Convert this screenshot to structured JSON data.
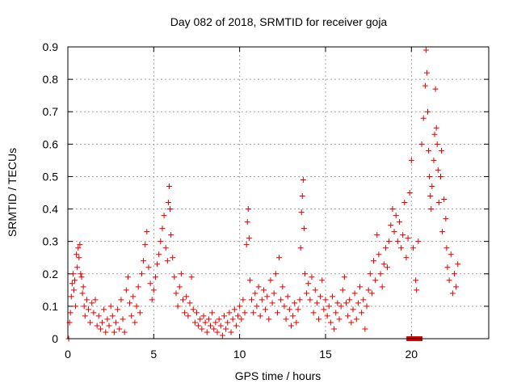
{
  "chart_data": {
    "type": "scatter",
    "title": "Day 082 of 2018, SRMTID for receiver goja",
    "xlabel": "GPS time / hours",
    "ylabel": "SRMTID / TECUs",
    "xlim": [
      0,
      24.5
    ],
    "ylim": [
      0,
      0.9
    ],
    "xticks": [
      0,
      5,
      10,
      15,
      20
    ],
    "yticks": [
      0,
      0.1,
      0.2,
      0.3,
      0.4,
      0.5,
      0.6,
      0.7,
      0.8,
      0.9
    ],
    "xtick_labels": [
      "0",
      "5",
      "10",
      "15",
      "20"
    ],
    "ytick_labels": [
      "0",
      "0.1",
      "0.2",
      "0.3",
      "0.4",
      "0.5",
      "0.6",
      "0.7",
      "0.8",
      "0.9"
    ],
    "grid": true,
    "marker": "plus",
    "color": "#e00000",
    "series": [
      {
        "name": "SRMTID",
        "points": [
          [
            0.05,
            0.0
          ],
          [
            0.1,
            0.05
          ],
          [
            0.15,
            0.08
          ],
          [
            0.2,
            0.13
          ],
          [
            0.25,
            0.17
          ],
          [
            0.3,
            0.2
          ],
          [
            0.35,
            0.15
          ],
          [
            0.4,
            0.18
          ],
          [
            0.45,
            0.1
          ],
          [
            0.5,
            0.26
          ],
          [
            0.55,
            0.22
          ],
          [
            0.6,
            0.28
          ],
          [
            0.65,
            0.25
          ],
          [
            0.7,
            0.29
          ],
          [
            0.75,
            0.2
          ],
          [
            0.8,
            0.19
          ],
          [
            0.85,
            0.14
          ],
          [
            0.9,
            0.16
          ],
          [
            0.95,
            0.1
          ],
          [
            1.0,
            0.07
          ],
          [
            1.1,
            0.12
          ],
          [
            1.2,
            0.09
          ],
          [
            1.3,
            0.05
          ],
          [
            1.4,
            0.11
          ],
          [
            1.5,
            0.08
          ],
          [
            1.6,
            0.12
          ],
          [
            1.7,
            0.04
          ],
          [
            1.8,
            0.07
          ],
          [
            1.9,
            0.03
          ],
          [
            2.0,
            0.05
          ],
          [
            2.1,
            0.09
          ],
          [
            2.2,
            0.02
          ],
          [
            2.3,
            0.06
          ],
          [
            2.4,
            0.04
          ],
          [
            2.5,
            0.1
          ],
          [
            2.6,
            0.07
          ],
          [
            2.7,
            0.02
          ],
          [
            2.8,
            0.05
          ],
          [
            2.9,
            0.09
          ],
          [
            3.0,
            0.03
          ],
          [
            3.1,
            0.12
          ],
          [
            3.2,
            0.06
          ],
          [
            3.3,
            0.02
          ],
          [
            3.4,
            0.15
          ],
          [
            3.5,
            0.19
          ],
          [
            3.6,
            0.11
          ],
          [
            3.7,
            0.07
          ],
          [
            3.8,
            0.13
          ],
          [
            3.9,
            0.05
          ],
          [
            4.0,
            0.1
          ],
          [
            4.1,
            0.16
          ],
          [
            4.2,
            0.08
          ],
          [
            4.3,
            0.2
          ],
          [
            4.4,
            0.24
          ],
          [
            4.5,
            0.29
          ],
          [
            4.6,
            0.33
          ],
          [
            4.7,
            0.22
          ],
          [
            4.8,
            0.17
          ],
          [
            4.9,
            0.12
          ],
          [
            5.0,
            0.15
          ],
          [
            5.1,
            0.19
          ],
          [
            5.2,
            0.23
          ],
          [
            5.3,
            0.26
          ],
          [
            5.4,
            0.3
          ],
          [
            5.5,
            0.34
          ],
          [
            5.6,
            0.38
          ],
          [
            5.7,
            0.28
          ],
          [
            5.8,
            0.24
          ],
          [
            5.85,
            0.42
          ],
          [
            5.9,
            0.47
          ],
          [
            5.95,
            0.4
          ],
          [
            6.0,
            0.32
          ],
          [
            6.1,
            0.25
          ],
          [
            6.2,
            0.19
          ],
          [
            6.3,
            0.14
          ],
          [
            6.4,
            0.1
          ],
          [
            6.5,
            0.16
          ],
          [
            6.6,
            0.2
          ],
          [
            6.7,
            0.12
          ],
          [
            6.8,
            0.08
          ],
          [
            6.9,
            0.13
          ],
          [
            7.0,
            0.07
          ],
          [
            7.1,
            0.11
          ],
          [
            7.2,
            0.19
          ],
          [
            7.3,
            0.09
          ],
          [
            7.4,
            0.05
          ],
          [
            7.5,
            0.08
          ],
          [
            7.6,
            0.04
          ],
          [
            7.7,
            0.06
          ],
          [
            7.8,
            0.03
          ],
          [
            7.9,
            0.07
          ],
          [
            8.0,
            0.05
          ],
          [
            8.1,
            0.02
          ],
          [
            8.2,
            0.06
          ],
          [
            8.3,
            0.04
          ],
          [
            8.4,
            0.08
          ],
          [
            8.5,
            0.03
          ],
          [
            8.6,
            0.05
          ],
          [
            8.7,
            0.02
          ],
          [
            8.8,
            0.06
          ],
          [
            8.9,
            0.04
          ],
          [
            9.0,
            0.01
          ],
          [
            9.1,
            0.07
          ],
          [
            9.2,
            0.03
          ],
          [
            9.3,
            0.05
          ],
          [
            9.4,
            0.08
          ],
          [
            9.5,
            0.02
          ],
          [
            9.6,
            0.06
          ],
          [
            9.7,
            0.09
          ],
          [
            9.8,
            0.04
          ],
          [
            9.9,
            0.07
          ],
          [
            10.0,
            0.1
          ],
          [
            10.1,
            0.06
          ],
          [
            10.2,
            0.12
          ],
          [
            10.3,
            0.08
          ],
          [
            10.4,
            0.29
          ],
          [
            10.45,
            0.36
          ],
          [
            10.5,
            0.4
          ],
          [
            10.55,
            0.31
          ],
          [
            10.6,
            0.18
          ],
          [
            10.7,
            0.12
          ],
          [
            10.8,
            0.08
          ],
          [
            10.9,
            0.14
          ],
          [
            11.0,
            0.1
          ],
          [
            11.1,
            0.16
          ],
          [
            11.2,
            0.07
          ],
          [
            11.3,
            0.12
          ],
          [
            11.4,
            0.15
          ],
          [
            11.5,
            0.09
          ],
          [
            11.6,
            0.13
          ],
          [
            11.7,
            0.06
          ],
          [
            11.8,
            0.18
          ],
          [
            11.9,
            0.11
          ],
          [
            12.0,
            0.14
          ],
          [
            12.1,
            0.2
          ],
          [
            12.2,
            0.08
          ],
          [
            12.3,
            0.25
          ],
          [
            12.4,
            0.12
          ],
          [
            12.5,
            0.16
          ],
          [
            12.6,
            0.1
          ],
          [
            12.7,
            0.06
          ],
          [
            12.8,
            0.13
          ],
          [
            12.9,
            0.09
          ],
          [
            13.0,
            0.04
          ],
          [
            13.1,
            0.07
          ],
          [
            13.2,
            0.11
          ],
          [
            13.3,
            0.05
          ],
          [
            13.4,
            0.09
          ],
          [
            13.5,
            0.12
          ],
          [
            13.55,
            0.28
          ],
          [
            13.6,
            0.39
          ],
          [
            13.65,
            0.44
          ],
          [
            13.7,
            0.49
          ],
          [
            13.75,
            0.34
          ],
          [
            13.8,
            0.2
          ],
          [
            13.9,
            0.14
          ],
          [
            14.0,
            0.17
          ],
          [
            14.1,
            0.12
          ],
          [
            14.2,
            0.19
          ],
          [
            14.3,
            0.08
          ],
          [
            14.4,
            0.15
          ],
          [
            14.5,
            0.11
          ],
          [
            14.6,
            0.06
          ],
          [
            14.7,
            0.13
          ],
          [
            14.8,
            0.18
          ],
          [
            14.9,
            0.09
          ],
          [
            15.0,
            0.12
          ],
          [
            15.1,
            0.07
          ],
          [
            15.2,
            0.1
          ],
          [
            15.3,
            0.05
          ],
          [
            15.4,
            0.13
          ],
          [
            15.5,
            0.03
          ],
          [
            15.6,
            0.08
          ],
          [
            15.7,
            0.11
          ],
          [
            15.8,
            0.06
          ],
          [
            15.9,
            0.1
          ],
          [
            16.0,
            0.15
          ],
          [
            16.1,
            0.19
          ],
          [
            16.2,
            0.11
          ],
          [
            16.3,
            0.07
          ],
          [
            16.4,
            0.12
          ],
          [
            16.5,
            0.05
          ],
          [
            16.6,
            0.09
          ],
          [
            16.7,
            0.14
          ],
          [
            16.8,
            0.06
          ],
          [
            16.9,
            0.11
          ],
          [
            17.0,
            0.16
          ],
          [
            17.1,
            0.08
          ],
          [
            17.2,
            0.12
          ],
          [
            17.3,
            0.03
          ],
          [
            17.4,
            0.1
          ],
          [
            17.5,
            0.15
          ],
          [
            17.6,
            0.2
          ],
          [
            17.7,
            0.14
          ],
          [
            17.8,
            0.24
          ],
          [
            17.9,
            0.18
          ],
          [
            18.0,
            0.32
          ],
          [
            18.1,
            0.26
          ],
          [
            18.2,
            0.2
          ],
          [
            18.3,
            0.16
          ],
          [
            18.4,
            0.23
          ],
          [
            18.5,
            0.28
          ],
          [
            18.6,
            0.22
          ],
          [
            18.7,
            0.3
          ],
          [
            18.8,
            0.35
          ],
          [
            18.9,
            0.4
          ],
          [
            19.0,
            0.33
          ],
          [
            19.1,
            0.38
          ],
          [
            19.2,
            0.3
          ],
          [
            19.3,
            0.36
          ],
          [
            19.4,
            0.28
          ],
          [
            19.5,
            0.32
          ],
          [
            19.6,
            0.42
          ],
          [
            19.7,
            0.25
          ],
          [
            19.8,
            0.31
          ],
          [
            19.85,
            0.0
          ],
          [
            19.9,
            0.45
          ],
          [
            19.95,
            0.0
          ],
          [
            20.0,
            0.55
          ],
          [
            20.1,
            0.28
          ],
          [
            20.2,
            0.0
          ],
          [
            20.25,
            0.18
          ],
          [
            20.3,
            0.15
          ],
          [
            20.35,
            0.0
          ],
          [
            20.4,
            0.3
          ],
          [
            20.5,
            0.0
          ],
          [
            20.6,
            0.6
          ],
          [
            20.7,
            0.68
          ],
          [
            20.8,
            0.78
          ],
          [
            20.85,
            0.89
          ],
          [
            20.9,
            0.82
          ],
          [
            20.95,
            0.7
          ],
          [
            21.0,
            0.58
          ],
          [
            21.05,
            0.5
          ],
          [
            21.1,
            0.44
          ],
          [
            21.15,
            0.4
          ],
          [
            21.2,
            0.47
          ],
          [
            21.3,
            0.55
          ],
          [
            21.35,
            0.63
          ],
          [
            21.4,
            0.77
          ],
          [
            21.45,
            0.65
          ],
          [
            21.5,
            0.6
          ],
          [
            21.55,
            0.52
          ],
          [
            21.6,
            0.42
          ],
          [
            21.7,
            0.5
          ],
          [
            21.75,
            0.58
          ],
          [
            21.8,
            0.33
          ],
          [
            21.9,
            0.43
          ],
          [
            22.0,
            0.37
          ],
          [
            22.05,
            0.28
          ],
          [
            22.1,
            0.22
          ],
          [
            22.2,
            0.18
          ],
          [
            22.3,
            0.26
          ],
          [
            22.4,
            0.14
          ],
          [
            22.5,
            0.2
          ],
          [
            22.6,
            0.16
          ],
          [
            22.7,
            0.23
          ]
        ]
      }
    ]
  }
}
